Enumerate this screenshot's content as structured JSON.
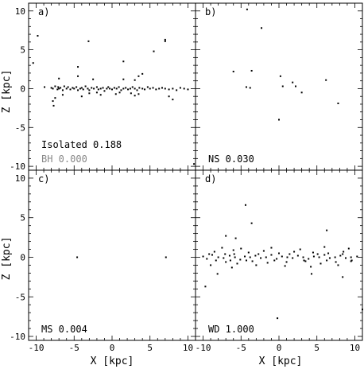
{
  "colors": {
    "ink": "#000000",
    "bh_text": "#888888",
    "background": "#ffffff"
  },
  "xlabel": "X [kpc]",
  "ylabel": "Z [kpc]",
  "chart_data": [
    {
      "type": "scatter",
      "panel": "a)",
      "grid": false,
      "xlabel": "",
      "ylabel": "Z [kpc]",
      "xlim": [
        -11,
        11
      ],
      "ylim": [
        -10.5,
        11
      ],
      "x_ticks": [
        -10,
        -5,
        0,
        5,
        10
      ],
      "y_ticks": [
        -10,
        -5,
        0,
        5,
        10
      ],
      "annotations": [
        {
          "text": "Isolated 0.188",
          "color": "#000000"
        },
        {
          "text": "BH 0.000",
          "color": "#888888"
        }
      ],
      "series": [
        {
          "x": [
            -9.8,
            -10.4,
            -8.9,
            -8.0,
            -7.8,
            -7.5,
            -7.2,
            -7.1,
            -7.0,
            -6.8,
            -6.5,
            -6.3,
            -6.0,
            -5.8,
            -5.5,
            -5.2,
            -5.0,
            -4.7,
            -4.5,
            -4.2,
            -4.0,
            -3.8,
            -3.5,
            -3.2,
            -3.0,
            -2.7,
            -2.4,
            -2.0,
            -1.8,
            -1.5,
            -1.2,
            -1.0,
            -0.7,
            -0.5,
            -0.3,
            0.0,
            0.3,
            0.6,
            0.9,
            1.2,
            1.5,
            1.8,
            2.1,
            2.4,
            2.7,
            3.0,
            3.3,
            3.6,
            4.0,
            4.3,
            4.7,
            5.0,
            5.4,
            5.8,
            6.2,
            6.6,
            7.0,
            7.5,
            8.0,
            8.5,
            9.0,
            9.5,
            10.0,
            -7.5,
            -7.8,
            -6.5,
            -4.0,
            -3.0,
            -2.0,
            -1.5,
            0.5,
            1.0,
            2.5,
            3.0,
            3.5,
            7.5,
            8.0,
            -7.7,
            -7.0,
            -4.5,
            -2.5,
            1.5,
            3.5,
            -4.5,
            -3.1,
            1.5,
            3.0,
            4.0,
            5.5,
            7.0,
            7.0,
            10.8
          ],
          "y": [
            6.8,
            3.3,
            0.2,
            0.1,
            0.0,
            0.3,
            -0.1,
            0.2,
            0.0,
            0.1,
            -0.2,
            0.3,
            0.0,
            0.2,
            -0.1,
            0.1,
            0.0,
            0.2,
            -0.2,
            0.0,
            0.1,
            -0.1,
            0.3,
            0.0,
            -0.2,
            0.1,
            0.0,
            0.2,
            -0.1,
            0.0,
            0.1,
            -0.3,
            0.0,
            0.2,
            0.0,
            -0.1,
            0.1,
            0.0,
            0.2,
            -0.2,
            0.0,
            0.1,
            -0.1,
            0.0,
            0.2,
            0.0,
            -0.2,
            0.1,
            0.0,
            -0.1,
            0.2,
            0.0,
            0.1,
            -0.1,
            0.0,
            0.1,
            0.0,
            -0.1,
            0.0,
            -0.2,
            0.1,
            0.0,
            -0.1,
            -1.2,
            -1.6,
            -0.8,
            -1.0,
            -0.6,
            -0.5,
            -0.8,
            -0.7,
            -0.5,
            -0.6,
            -0.9,
            -0.7,
            -1.0,
            -1.4,
            -2.2,
            1.3,
            1.6,
            1.2,
            1.2,
            1.6,
            2.8,
            6.1,
            3.5,
            1.1,
            1.9,
            4.8,
            6.3,
            6.1,
            -9.7
          ]
        }
      ]
    },
    {
      "type": "scatter",
      "panel": "b)",
      "grid": false,
      "xlabel": "",
      "ylabel": "",
      "xlim": [
        -11,
        11
      ],
      "ylim": [
        -10.5,
        11
      ],
      "x_ticks": [
        -10,
        -5,
        0,
        5,
        10
      ],
      "y_ticks": [
        -10,
        -5,
        0,
        5,
        10
      ],
      "annotations": [
        {
          "text": "NS 0.030",
          "color": "#000000"
        }
      ],
      "series": [
        {
          "x": [
            -4.2,
            -2.3,
            -6.0,
            -3.6,
            -4.3,
            -3.8,
            0.2,
            1.8,
            2.2,
            0.5,
            3.0,
            6.2,
            7.8,
            0.0
          ],
          "y": [
            10.2,
            7.8,
            2.2,
            2.3,
            0.2,
            0.1,
            1.6,
            0.8,
            0.3,
            0.3,
            -0.5,
            1.1,
            -1.9,
            -4.0
          ]
        }
      ]
    },
    {
      "type": "scatter",
      "panel": "c)",
      "grid": false,
      "xlabel": "X [kpc]",
      "ylabel": "Z [kpc]",
      "xlim": [
        -11,
        11
      ],
      "ylim": [
        -10.5,
        11
      ],
      "x_ticks": [
        -10,
        -5,
        0,
        5,
        10
      ],
      "y_ticks": [
        -10,
        -5,
        0,
        5,
        10
      ],
      "annotations": [
        {
          "text": "MS 0.004",
          "color": "#000000"
        }
      ],
      "series": [
        {
          "x": [
            -4.6,
            7.1
          ],
          "y": [
            0.0,
            0.0
          ]
        }
      ]
    },
    {
      "type": "scatter",
      "panel": "d)",
      "grid": false,
      "xlabel": "X [kpc]",
      "ylabel": "",
      "xlim": [
        -11,
        11
      ],
      "ylim": [
        -10.5,
        11
      ],
      "x_ticks": [
        -10,
        -5,
        0,
        5,
        10
      ],
      "y_ticks": [
        -10,
        -5,
        0,
        5,
        10
      ],
      "annotations": [
        {
          "text": "WD 1.000",
          "color": "#000000"
        }
      ],
      "series": [
        {
          "x": [
            -10.0,
            -9.5,
            -8.8,
            -8.0,
            -7.3,
            -6.5,
            -5.8,
            -5.1,
            -4.5,
            -3.8,
            -3.1,
            -2.4,
            -1.7,
            -1.0,
            -0.3,
            0.4,
            1.1,
            1.8,
            2.5,
            3.2,
            3.9,
            4.6,
            5.3,
            6.0,
            6.7,
            7.4,
            8.1,
            8.8,
            9.5,
            10.3,
            -8.5,
            -7.0,
            -6.0,
            -5.5,
            -4.0,
            -3.5,
            -2.0,
            -1.5,
            0.0,
            1.0,
            2.0,
            3.5,
            4.5,
            5.5,
            6.5,
            7.5,
            8.5,
            9.5,
            -9.0,
            -7.5,
            -6.2,
            -5.0,
            -3.0,
            -1.0,
            0.8,
            2.8,
            4.2,
            6.0,
            7.8,
            9.2,
            -9.2,
            -8.3,
            -7.1,
            -6.4,
            -5.9,
            -4.3,
            -2.7,
            -0.6,
            1.4,
            3.3,
            5.1,
            6.3,
            8.4,
            9.6,
            -4.4,
            -3.6,
            -7.0,
            -5.7,
            6.3,
            -8.1,
            -9.7,
            8.4,
            11.0,
            -0.2,
            4.3
          ],
          "y": [
            0.1,
            -0.2,
            0.3,
            0.0,
            -0.1,
            0.2,
            0.0,
            -0.3,
            0.1,
            0.0,
            0.2,
            -0.1,
            0.0,
            0.3,
            -0.2,
            0.1,
            0.0,
            -0.1,
            0.2,
            0.0,
            -0.2,
            0.1,
            0.0,
            0.3,
            -0.1,
            0.0,
            0.2,
            -0.1,
            0.0,
            0.1,
            0.7,
            -0.6,
            0.9,
            -0.8,
            0.6,
            -0.5,
            0.8,
            -0.7,
            0.5,
            -0.6,
            0.7,
            -0.5,
            0.6,
            -0.8,
            0.5,
            -0.6,
            0.7,
            -0.5,
            -1.0,
            1.2,
            -1.3,
            1.1,
            -1.0,
            1.2,
            -1.1,
            1.0,
            -1.2,
            1.3,
            -1.0,
            1.1,
            0.4,
            -0.4,
            0.4,
            -0.4,
            0.4,
            -0.4,
            0.4,
            -0.4,
            0.4,
            -0.4,
            0.4,
            -0.4,
            0.4,
            -0.4,
            6.6,
            4.3,
            2.7,
            2.4,
            3.4,
            -2.1,
            -3.7,
            -2.5,
            -6.6,
            -7.7,
            -2.1
          ]
        }
      ]
    }
  ]
}
